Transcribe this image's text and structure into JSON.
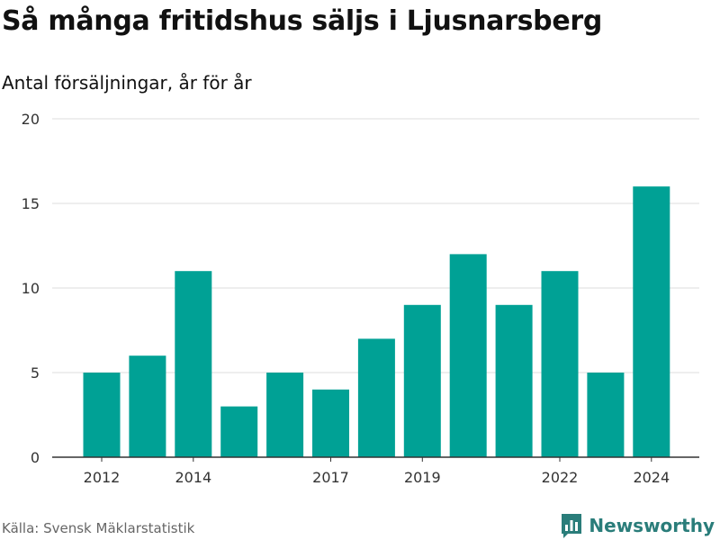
{
  "title": "Så många fritidshus säljs i Ljusnarsberg",
  "subtitle": "Antal försäljningar, år för år",
  "source": "Källa: Svensk Mäklarstatistik",
  "brand": {
    "name": "Newsworthy",
    "icon": "newsworthy-logo-icon"
  },
  "colors": {
    "bar": "#00a195",
    "brand": "#2a7d7a",
    "grid": "#dddddd",
    "axis": "#333333"
  },
  "chart_data": {
    "type": "bar",
    "categories": [
      2012,
      2013,
      2014,
      2015,
      2016,
      2017,
      2018,
      2019,
      2020,
      2021,
      2022,
      2023,
      2024
    ],
    "values": [
      5,
      6,
      11,
      3,
      5,
      4,
      7,
      9,
      12,
      9,
      11,
      5,
      16
    ],
    "x_tick_labels": [
      2012,
      2014,
      2017,
      2019,
      2022,
      2024
    ],
    "y_ticks": [
      0,
      5,
      10,
      15,
      20
    ],
    "ylim": [
      0,
      20
    ],
    "grid": true,
    "legend": "none"
  }
}
